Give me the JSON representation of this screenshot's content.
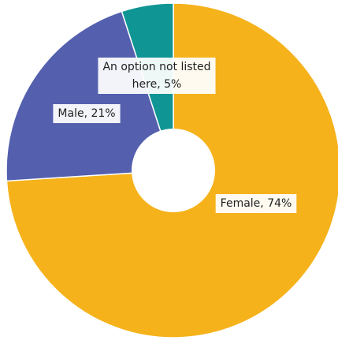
{
  "chart_data": {
    "type": "pie",
    "donut": true,
    "slices": [
      {
        "label": "Female, 74%",
        "category": "Female",
        "value": 74,
        "color": "#F5B21B"
      },
      {
        "label": "Male, 21%",
        "category": "Male",
        "value": 21,
        "color": "#5460AE"
      },
      {
        "label": "An option not listed here, 5%",
        "label_lines": [
          "An option not listed",
          "here, 5%"
        ],
        "category": "An option not listed here",
        "value": 5,
        "color": "#0E9594"
      }
    ],
    "legend": "none"
  }
}
